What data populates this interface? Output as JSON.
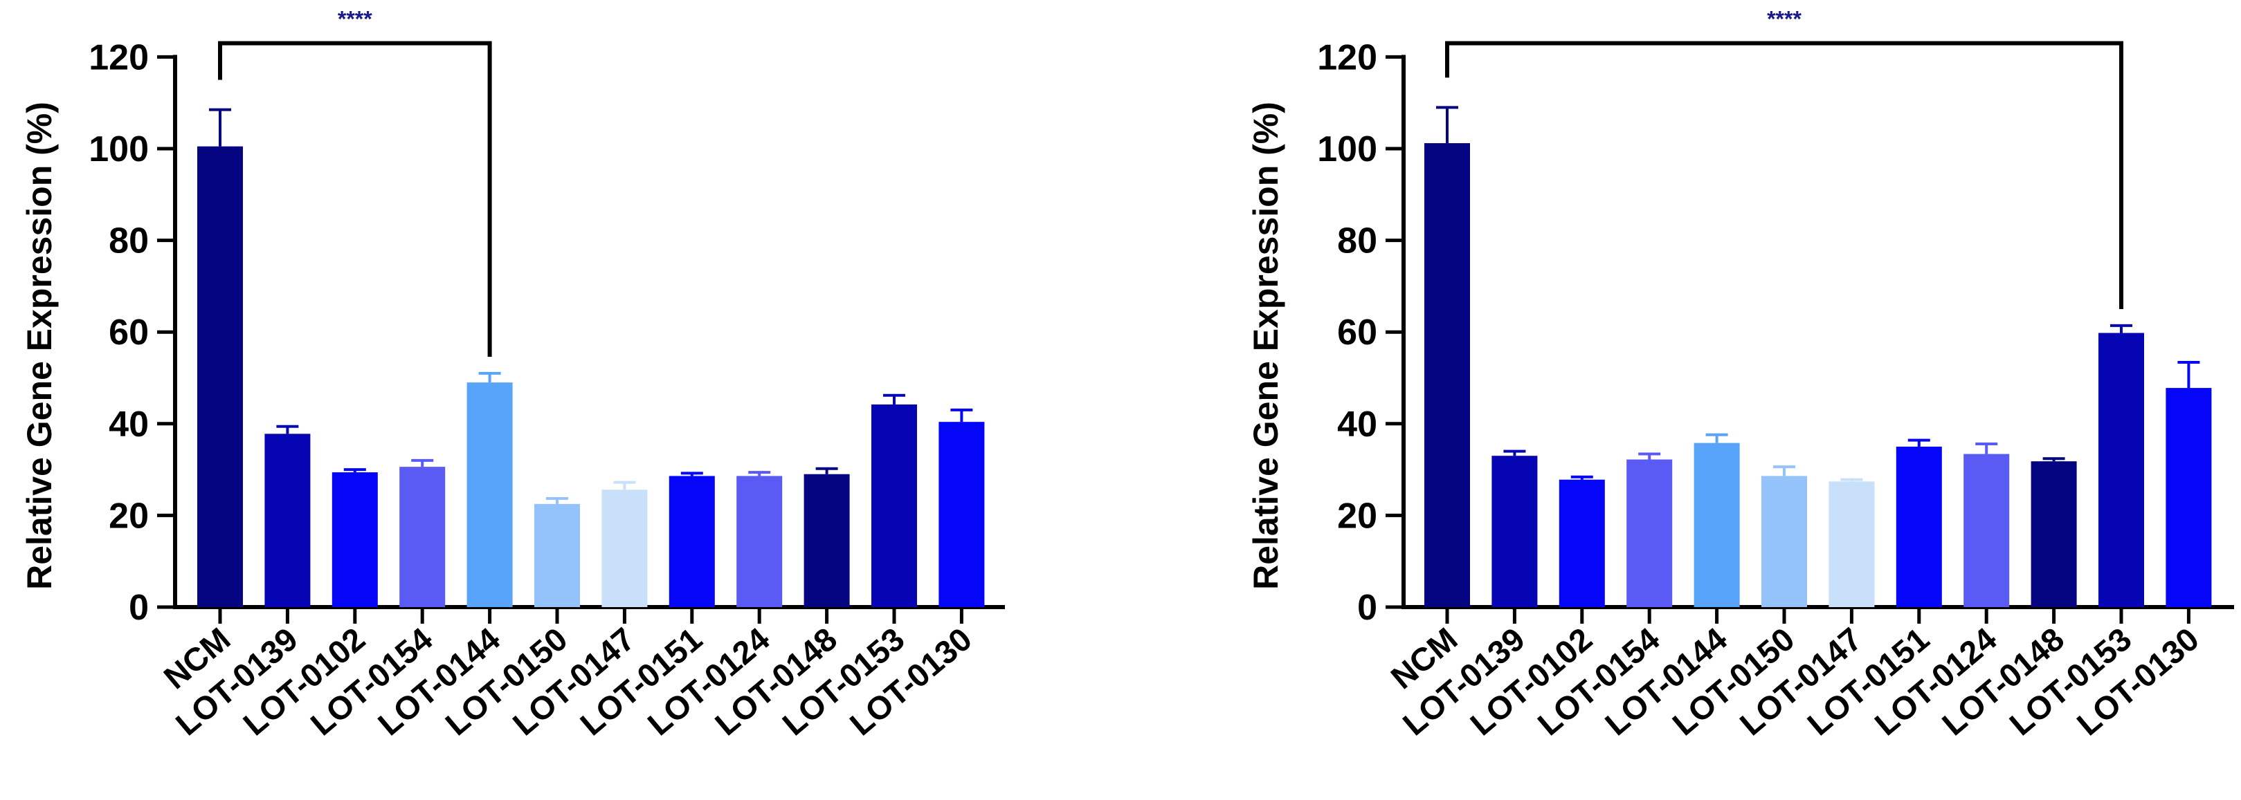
{
  "chart_data": [
    {
      "type": "bar",
      "title": "",
      "xlabel": "",
      "ylabel": "Relative Gene Expression (%)",
      "ylim": [
        0,
        120
      ],
      "yticks": [
        0,
        20,
        40,
        60,
        80,
        100,
        120
      ],
      "ytick_labels": [
        "0",
        "20",
        "40",
        "60",
        "80",
        "100",
        "120"
      ],
      "grid": false,
      "legend": "none",
      "categories": [
        "NCM",
        "LOT-0139",
        "LOT-0102",
        "LOT-0154",
        "LOT-0144",
        "LOT-0150",
        "LOT-0147",
        "LOT-0151",
        "LOT-0124",
        "LOT-0148",
        "LOT-0153",
        "LOT-0130"
      ],
      "values": [
        100.5,
        37.8,
        29.4,
        30.6,
        49.0,
        22.5,
        25.6,
        28.6,
        28.6,
        29.0,
        44.2,
        40.4
      ],
      "errors": [
        8.0,
        1.6,
        0.6,
        1.4,
        2.0,
        1.2,
        1.6,
        0.6,
        0.8,
        1.2,
        2.0,
        2.6
      ],
      "colors": [
        "#050582",
        "#0505b4",
        "#0505f8",
        "#5a5af5",
        "#58a4fa",
        "#94c2fa",
        "#c8e0fa",
        "#0505f8",
        "#5a5af5",
        "#050582",
        "#0505b4",
        "#0505f8"
      ],
      "significance": {
        "from": "NCM",
        "to": "LOT-0144",
        "y": 123,
        "label": "****"
      }
    },
    {
      "type": "bar",
      "title": "",
      "xlabel": "",
      "ylabel": "Relative Gene Expression (%)",
      "ylim": [
        0,
        120
      ],
      "yticks": [
        0,
        20,
        40,
        60,
        80,
        100,
        120
      ],
      "ytick_labels": [
        "0",
        "20",
        "40",
        "60",
        "80",
        "100",
        "120"
      ],
      "grid": false,
      "legend": "none",
      "categories": [
        "NCM",
        "LOT-0139",
        "LOT-0102",
        "LOT-0154",
        "LOT-0144",
        "LOT-0150",
        "LOT-0147",
        "LOT-0151",
        "LOT-0124",
        "LOT-0148",
        "LOT-0153",
        "LOT-0130"
      ],
      "values": [
        101.2,
        33.0,
        27.8,
        32.2,
        35.8,
        28.6,
        27.4,
        35.0,
        33.4,
        31.8,
        59.8,
        47.8
      ],
      "errors": [
        7.8,
        1.0,
        0.6,
        1.2,
        1.8,
        2.0,
        0.4,
        1.4,
        2.2,
        0.6,
        1.6,
        5.6
      ],
      "colors": [
        "#050582",
        "#0505b4",
        "#0505f8",
        "#5a5af5",
        "#58a4fa",
        "#94c2fa",
        "#c8e0fa",
        "#0505f8",
        "#5a5af5",
        "#050582",
        "#0505b4",
        "#0505f8"
      ],
      "significance": {
        "from": "NCM",
        "to": "LOT-0153",
        "y": 123,
        "label": "****"
      }
    }
  ]
}
